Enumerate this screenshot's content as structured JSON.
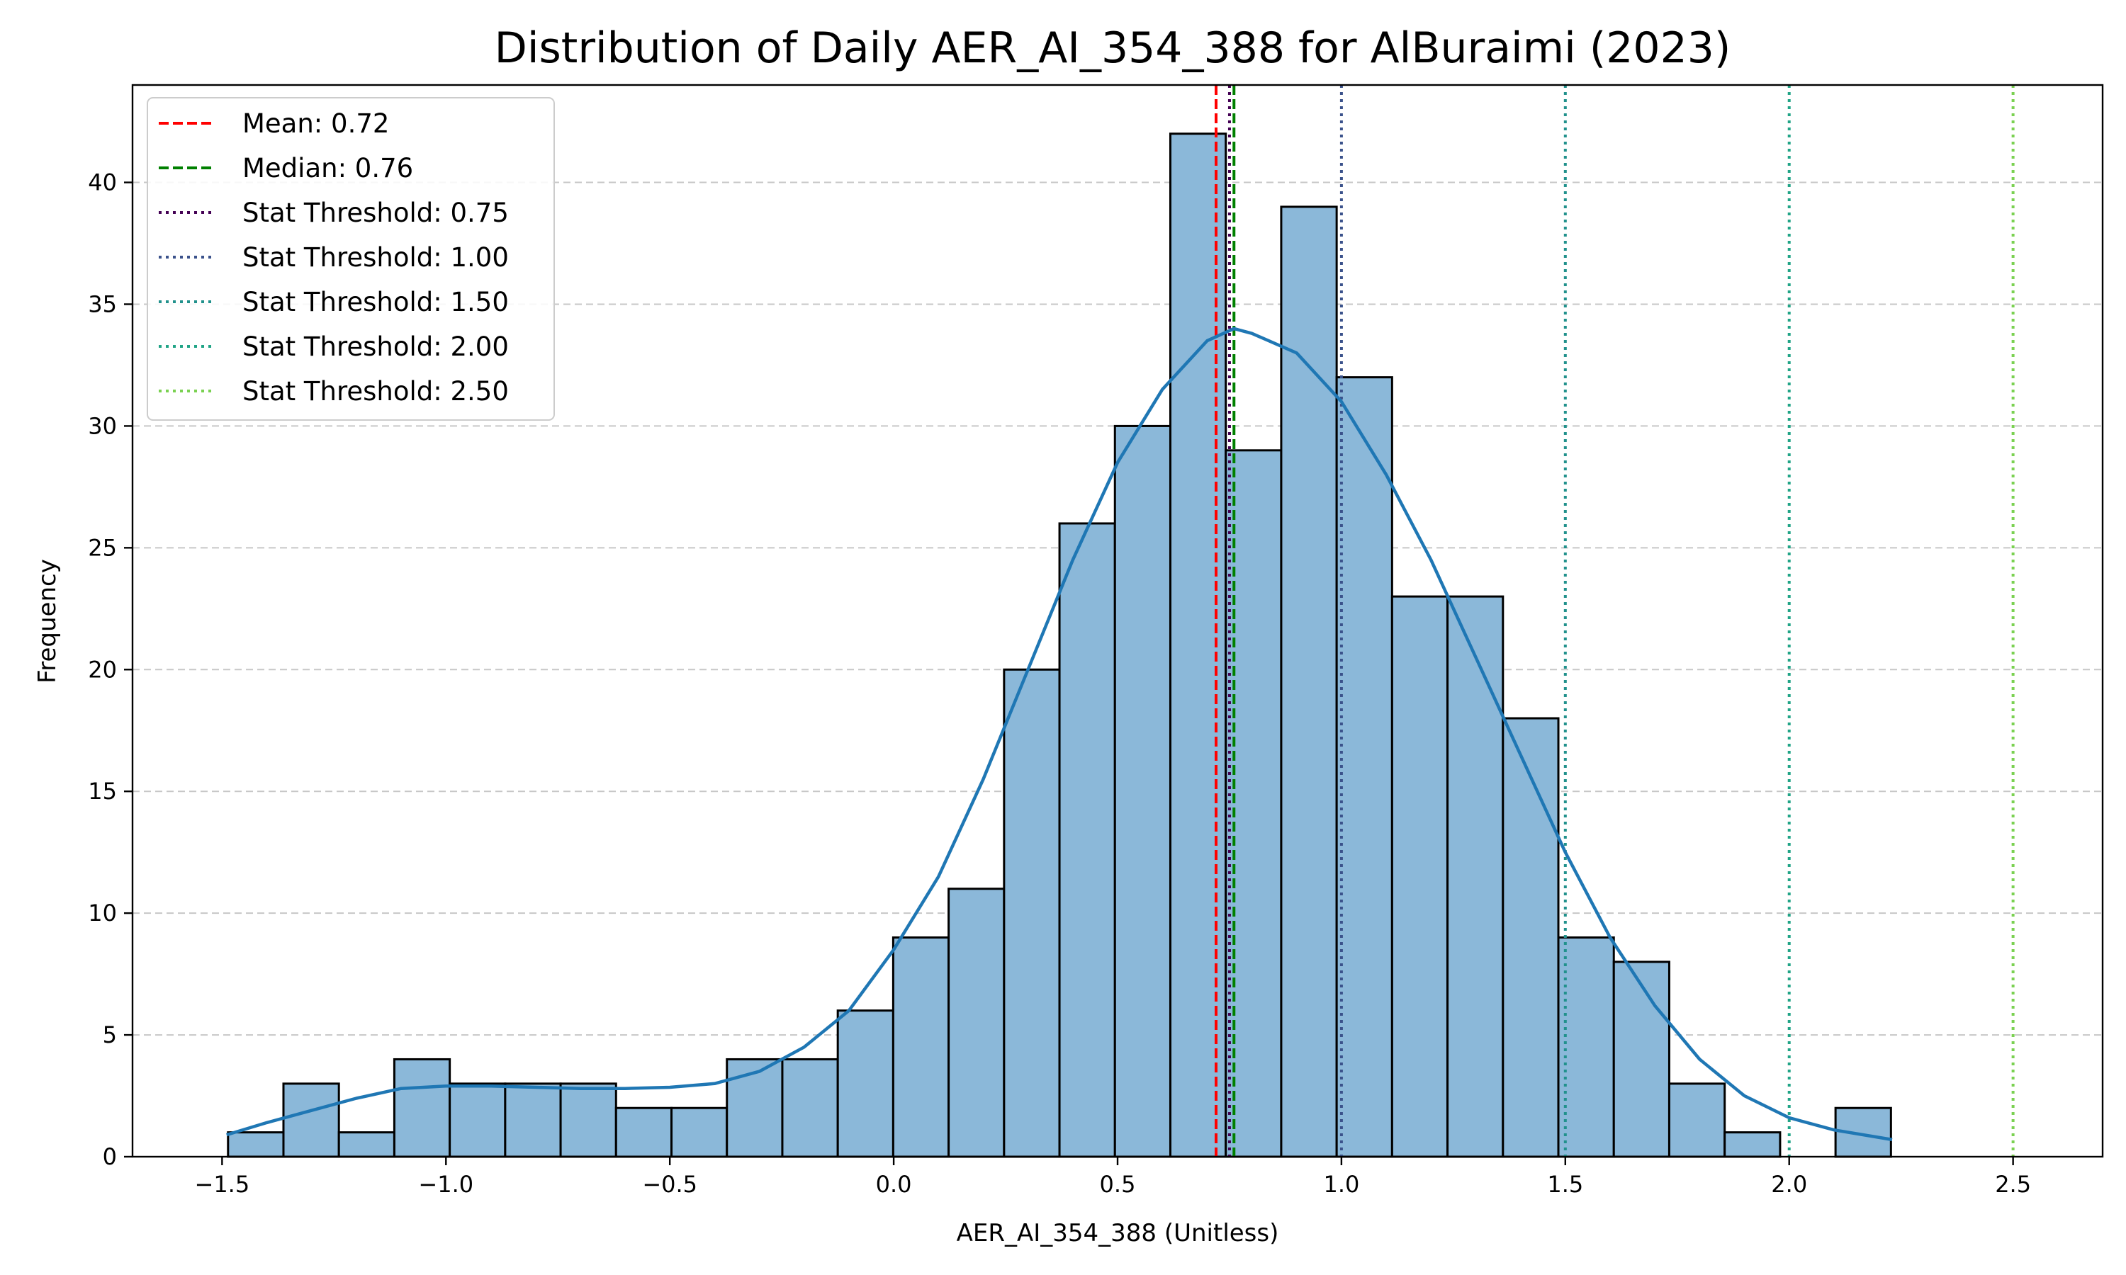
{
  "chart_data": {
    "type": "bar",
    "title": "Distribution of Daily AER_AI_354_388 for AlBuraimi (2023)",
    "xlabel": "AER_AI_354_388 (Unitless)",
    "ylabel": "Frequency",
    "xlim": [
      -1.7,
      2.7
    ],
    "ylim": [
      0,
      44
    ],
    "xticks": [
      -1.5,
      -1.0,
      -0.5,
      0.0,
      0.5,
      1.0,
      1.5,
      2.0,
      2.5
    ],
    "xtick_labels": [
      "−1.5",
      "−1.0",
      "−0.5",
      "0.0",
      "0.5",
      "1.0",
      "1.5",
      "2.0",
      "2.5"
    ],
    "yticks": [
      0,
      5,
      10,
      15,
      20,
      25,
      30,
      35,
      40
    ],
    "ytick_labels": [
      "0",
      "5",
      "10",
      "15",
      "20",
      "25",
      "30",
      "35",
      "40"
    ],
    "grid": "y dashed",
    "legend_position": "top-left",
    "bins": {
      "start": -1.4867,
      "width": 0.1238,
      "counts": [
        1,
        3,
        1,
        4,
        3,
        3,
        3,
        2,
        2,
        4,
        4,
        6,
        9,
        11,
        20,
        26,
        30,
        42,
        29,
        39,
        32,
        23,
        23,
        18,
        9,
        8,
        3,
        1,
        0,
        2
      ]
    },
    "bar_color": "#8bb8d9",
    "kde": {
      "color": "#1f77b4",
      "x": [
        -1.49,
        -1.4,
        -1.3,
        -1.2,
        -1.1,
        -1.0,
        -0.9,
        -0.8,
        -0.7,
        -0.6,
        -0.5,
        -0.4,
        -0.3,
        -0.2,
        -0.1,
        0.0,
        0.1,
        0.2,
        0.3,
        0.4,
        0.5,
        0.6,
        0.7,
        0.76,
        0.8,
        0.9,
        1.0,
        1.1,
        1.2,
        1.3,
        1.4,
        1.5,
        1.6,
        1.7,
        1.8,
        1.9,
        2.0,
        2.1,
        2.23
      ],
      "y": [
        0.9,
        1.4,
        1.9,
        2.4,
        2.8,
        2.9,
        2.9,
        2.85,
        2.8,
        2.8,
        2.85,
        3.0,
        3.5,
        4.5,
        6.0,
        8.5,
        11.5,
        15.5,
        20.0,
        24.5,
        28.5,
        31.5,
        33.5,
        34.0,
        33.8,
        33.0,
        31.0,
        28.0,
        24.5,
        20.5,
        16.5,
        12.5,
        9.0,
        6.2,
        4.0,
        2.5,
        1.6,
        1.1,
        0.7
      ]
    },
    "vlines": [
      {
        "label": "Mean: 0.72",
        "x": 0.72,
        "color": "#ff0000",
        "style": "dashed"
      },
      {
        "label": "Median: 0.76",
        "x": 0.76,
        "color": "#008000",
        "style": "dashed"
      },
      {
        "label": "Stat Threshold: 0.75",
        "x": 0.75,
        "color": "#440154",
        "style": "dotted"
      },
      {
        "label": "Stat Threshold: 1.00",
        "x": 1.0,
        "color": "#3b528b",
        "style": "dotted"
      },
      {
        "label": "Stat Threshold: 1.50",
        "x": 1.5,
        "color": "#21918c",
        "style": "dotted"
      },
      {
        "label": "Stat Threshold: 2.00",
        "x": 2.0,
        "color": "#20a486",
        "style": "dotted"
      },
      {
        "label": "Stat Threshold: 2.50",
        "x": 2.5,
        "color": "#7ad151",
        "style": "dotted"
      }
    ]
  }
}
